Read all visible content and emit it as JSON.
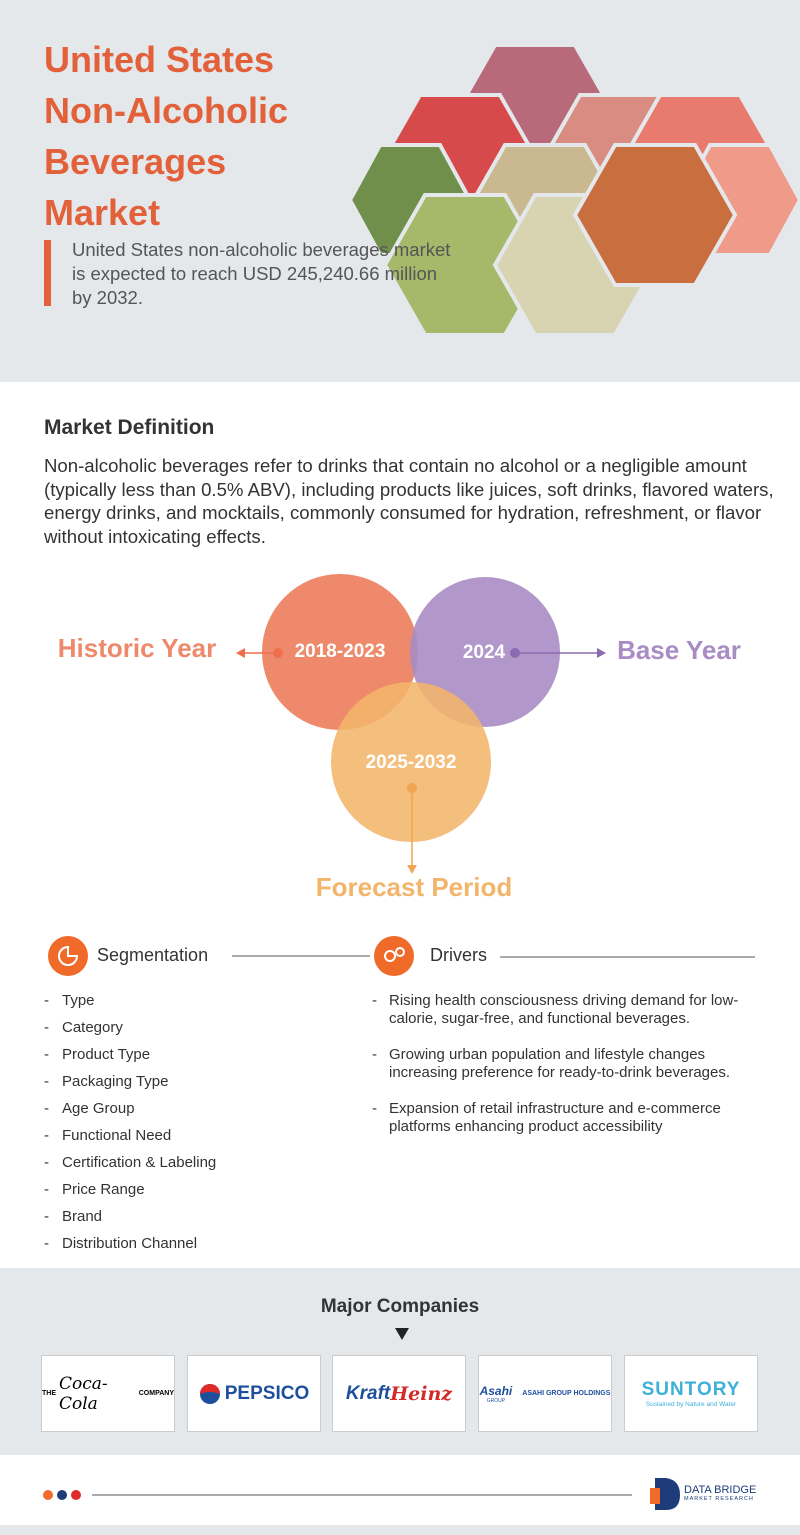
{
  "header": {
    "title_lines": [
      "United States",
      "Non-Alcoholic",
      "Beverages",
      "Market"
    ],
    "subtitle": "United States non-alcoholic beverages market is expected to reach USD 245,240.66 million by 2032."
  },
  "definition": {
    "heading": "Market Definition",
    "text": "Non-alcoholic beverages refer to drinks that contain no alcohol or a negligible amount (typically less than 0.5% ABV), including products like juices, soft drinks, flavored waters, energy drinks, and mocktails, commonly consumed for hydration, refreshment, or flavor without intoxicating effects."
  },
  "timeline": {
    "historic_label": "Historic Year",
    "historic_years": "2018-2023",
    "base_years": "2024",
    "base_label": "Base Year",
    "forecast_years": "2025-2032",
    "forecast_label": "Forecast Period"
  },
  "segmentation": {
    "heading": "Segmentation",
    "items": [
      "Type",
      "Category",
      "Product Type",
      "Packaging Type",
      "Age Group",
      "Functional Need",
      "Certification & Labeling",
      "Price Range",
      "Brand",
      "Distribution Channel"
    ]
  },
  "drivers": {
    "heading": "Drivers",
    "items": [
      "Rising health consciousness driving demand for low-calorie, sugar-free, and functional beverages.",
      "Growing urban population and lifestyle changes increasing preference for ready-to-drink beverages.",
      "Expansion of retail infrastructure and e-commerce platforms enhancing product accessibility"
    ]
  },
  "companies": {
    "heading": "Major Companies",
    "coca_cola": [
      "THE",
      "Coca-Cola",
      "COMPANY"
    ],
    "pepsico": "PEPSICO",
    "kraft_heinz": [
      "Kraft",
      "Heinz"
    ],
    "asahi": [
      "Asahi",
      "GROUP",
      "ASAHI GROUP HOLDINGS"
    ],
    "suntory": [
      "SUNTORY",
      "Sustained by Nature and Water"
    ]
  },
  "footer": {
    "brand": "DATA BRIDGE",
    "tagline": "MARKET RESEARCH"
  }
}
